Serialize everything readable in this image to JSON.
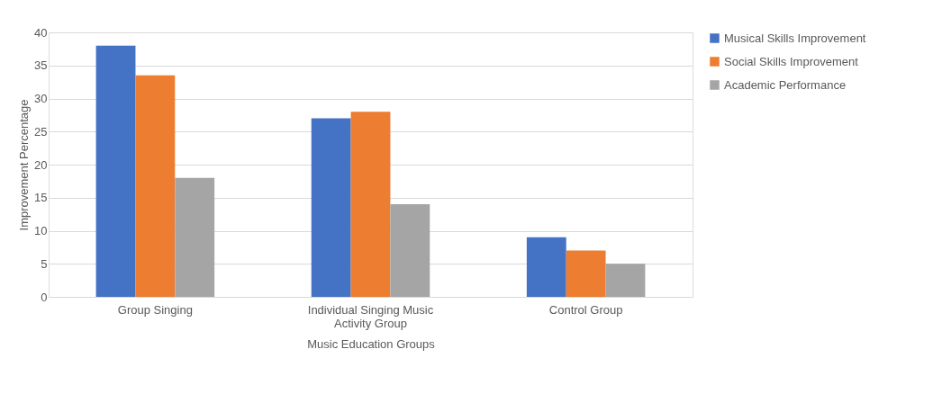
{
  "chart_data": {
    "type": "bar",
    "xlabel": "Music Education Groups",
    "ylabel": "Improvement Percentage",
    "categories": [
      "Group Singing",
      "Individual Singing Music Activity Group",
      "Control Group"
    ],
    "series": [
      {
        "name": "Musical Skills Improvement",
        "color": "#4472c4",
        "values": [
          38,
          27,
          9
        ]
      },
      {
        "name": "Social Skills Improvement",
        "color": "#ed7d31",
        "values": [
          33.5,
          28,
          7
        ]
      },
      {
        "name": "Academic Performance",
        "color": "#a5a5a5",
        "values": [
          18,
          14,
          5
        ]
      }
    ],
    "ylim": [
      0,
      40
    ],
    "yticks": [
      0,
      5,
      10,
      15,
      20,
      25,
      30,
      35,
      40
    ],
    "grid": "y",
    "legend": "right"
  }
}
